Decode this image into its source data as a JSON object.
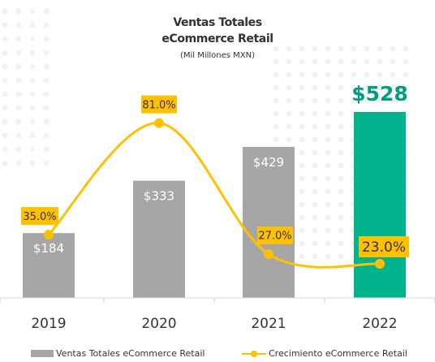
{
  "chart_data": {
    "type": "bar",
    "title_line1": "Ventas Totales",
    "title_line2": "eCommerce Retail",
    "subtitle": "(Mil Millones MXN)",
    "categories": [
      "2019",
      "2020",
      "2021",
      "2022"
    ],
    "series": [
      {
        "name": "Ventas Totales eCommerce Retail",
        "type": "bar",
        "values": [
          184,
          333,
          429,
          528
        ],
        "labels": [
          "$184",
          "$333",
          "$429",
          "$528"
        ],
        "colors": [
          "#a6a6a6",
          "#a6a6a6",
          "#a6a6a6",
          "#00b38c"
        ]
      },
      {
        "name": "Crecimiento eCommerce Retail",
        "type": "line",
        "values": [
          35.0,
          81.0,
          27.0,
          23.0
        ],
        "labels": [
          "35.0%",
          "81.0%",
          "27.0%",
          "23.0%"
        ],
        "color": "#ffc000"
      }
    ],
    "legend_position": "bottom",
    "grid": false
  }
}
